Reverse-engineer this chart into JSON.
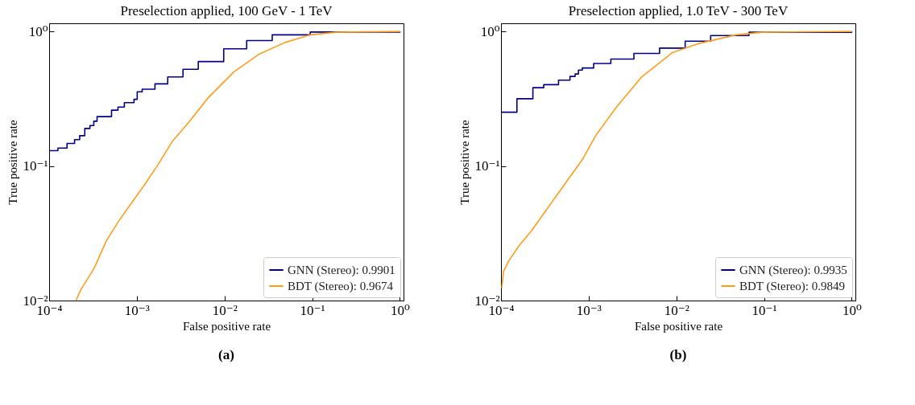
{
  "chart_data": [
    {
      "type": "line",
      "title": "Preselection applied, 100 GeV - 1 TeV",
      "xlabel": "False positive rate",
      "ylabel": "True positive rate",
      "annotations": [
        "(a)"
      ],
      "log": "xy",
      "grid": false,
      "legend": "bottom right",
      "xlim": [
        0.0001,
        1.1
      ],
      "ylim": [
        0.01,
        1.15
      ],
      "xticks": [
        {
          "value": 0.0001,
          "label": "10⁻⁴"
        },
        {
          "value": 0.001,
          "label": "10⁻³"
        },
        {
          "value": 0.01,
          "label": "10⁻²"
        },
        {
          "value": 0.1,
          "label": "10⁻¹"
        },
        {
          "value": 1,
          "label": "10⁰"
        }
      ],
      "yticks": [
        {
          "value": 0.01,
          "label": "10⁻²"
        },
        {
          "value": 0.1,
          "label": "10⁻¹"
        },
        {
          "value": 1,
          "label": "10⁰"
        }
      ],
      "series": [
        {
          "name": "GNN (Stereo): 0.9901",
          "type": "step",
          "color": "#00008b",
          "x": [
            0.0001,
            0.000126,
            0.00016,
            0.000195,
            0.000223,
            0.000255,
            0.000292,
            0.000323,
            0.000352,
            0.000515,
            0.00061,
            0.000721,
            0.000929,
            0.00101,
            0.00115,
            0.00161,
            0.00225,
            0.00336,
            0.00502,
            0.00979,
            0.0179,
            0.035,
            0.095,
            1
          ],
          "values": [
            0.13,
            0.136,
            0.147,
            0.157,
            0.168,
            0.19,
            0.2,
            0.215,
            0.233,
            0.26,
            0.274,
            0.296,
            0.313,
            0.356,
            0.372,
            0.408,
            0.459,
            0.523,
            0.597,
            0.743,
            0.855,
            0.944,
            0.99,
            1
          ]
        },
        {
          "name": "BDT (Stereo): 0.9674",
          "type": "line",
          "color": "#ff9c1a",
          "x": [
            0.000202,
            0.000231,
            0.000323,
            0.000451,
            0.00063,
            0.000881,
            0.00123,
            0.00172,
            0.00257,
            0.00384,
            0.00656,
            0.0128,
            0.025,
            0.0489,
            0.0955,
            0.186,
            1
          ],
          "values": [
            0.01,
            0.0121,
            0.0172,
            0.0279,
            0.0395,
            0.0537,
            0.073,
            0.101,
            0.154,
            0.208,
            0.323,
            0.501,
            0.68,
            0.828,
            0.944,
            0.987,
            1
          ]
        }
      ]
    },
    {
      "type": "line",
      "title": "Preselection applied, 1.0 TeV - 300 TeV",
      "xlabel": "False positive rate",
      "ylabel": "True positive rate",
      "annotations": [
        "(b)"
      ],
      "log": "xy",
      "grid": false,
      "legend": "bottom right",
      "xlim": [
        0.0001,
        1.1
      ],
      "ylim": [
        0.01,
        1.15
      ],
      "xticks": [
        {
          "value": 0.0001,
          "label": "10⁻⁴"
        },
        {
          "value": 0.001,
          "label": "10⁻³"
        },
        {
          "value": 0.01,
          "label": "10⁻²"
        },
        {
          "value": 0.1,
          "label": "10⁻¹"
        },
        {
          "value": 1,
          "label": "10⁰"
        }
      ],
      "yticks": [
        {
          "value": 0.01,
          "label": "10⁻²"
        },
        {
          "value": 0.1,
          "label": "10⁻¹"
        },
        {
          "value": 1,
          "label": "10⁰"
        }
      ],
      "series": [
        {
          "name": "GNN (Stereo): 0.9935",
          "type": "step",
          "color": "#00008b",
          "x": [
            0.0001,
            0.000152,
            0.000231,
            0.000307,
            0.000453,
            0.000612,
            0.0007,
            0.000764,
            0.000845,
            0.00114,
            0.00179,
            0.00328,
            0.00643,
            0.0126,
            0.0246,
            0.0673,
            1
          ],
          "values": [
            0.251,
            0.316,
            0.382,
            0.402,
            0.435,
            0.463,
            0.483,
            0.516,
            0.535,
            0.578,
            0.624,
            0.687,
            0.752,
            0.847,
            0.933,
            0.987,
            1
          ]
        },
        {
          "name": "BDT (Stereo): 0.9849",
          "type": "line",
          "color": "#ff9c1a",
          "x": [
            0.000102,
            0.000107,
            0.000122,
            0.00016,
            0.000224,
            0.000313,
            0.000438,
            0.000612,
            0.000857,
            0.0012,
            0.00205,
            0.00401,
            0.00897,
            0.0176,
            0.0481,
            0.0942,
            1
          ],
          "values": [
            0.0124,
            0.0165,
            0.0196,
            0.0255,
            0.0332,
            0.0451,
            0.0612,
            0.0832,
            0.113,
            0.168,
            0.271,
            0.459,
            0.695,
            0.811,
            0.944,
            0.987,
            1
          ]
        }
      ]
    }
  ]
}
